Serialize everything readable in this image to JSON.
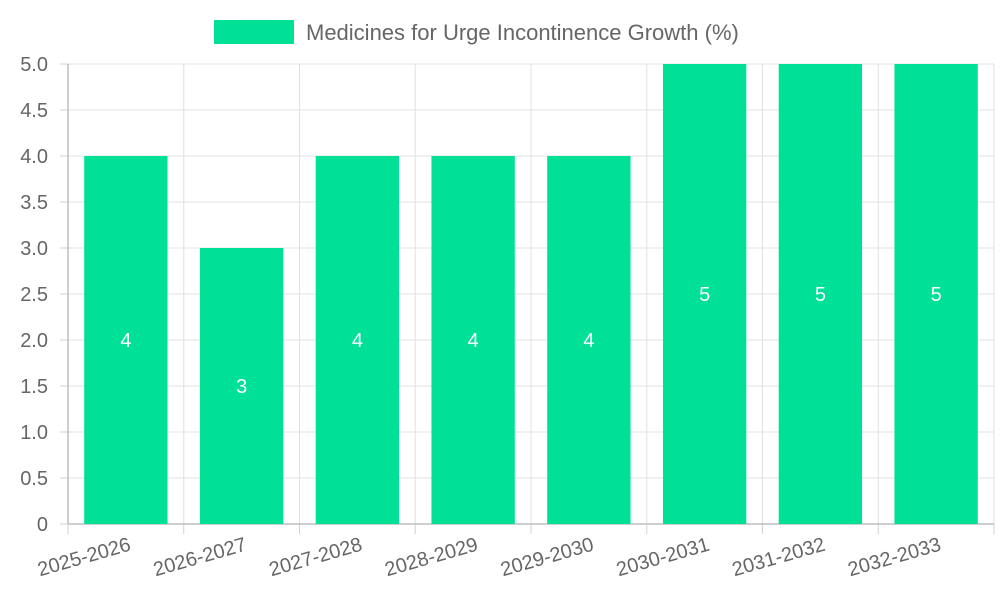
{
  "chart_data": {
    "type": "bar",
    "categories": [
      "2025-2026",
      "2026-2027",
      "2027-2028",
      "2028-2029",
      "2029-2030",
      "2030-2031",
      "2031-2032",
      "2032-2033"
    ],
    "series": [
      {
        "name": "Medicines for Urge Incontinence Growth (%)",
        "values": [
          4,
          3,
          4,
          4,
          4,
          5,
          5,
          5
        ],
        "color": "#00e096"
      }
    ],
    "y_ticks": [
      "0",
      "0.5",
      "1.0",
      "1.5",
      "2.0",
      "2.5",
      "3.0",
      "3.5",
      "4.0",
      "4.5",
      "5.0"
    ],
    "ylim": [
      0,
      5
    ],
    "grid": true,
    "legend_position": "top"
  }
}
